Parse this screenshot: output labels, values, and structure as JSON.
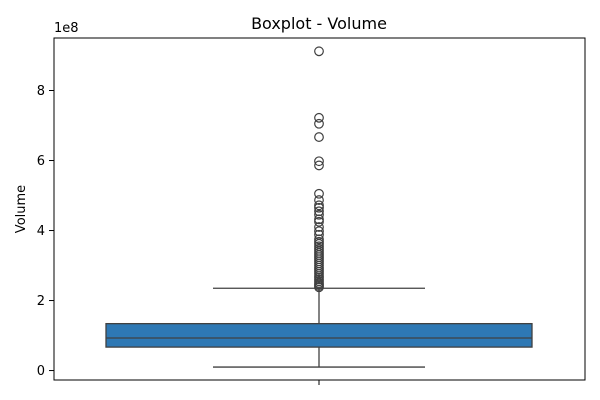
{
  "chart_data": {
    "type": "box",
    "title": "Boxplot - Volume",
    "xlabel": "",
    "ylabel": "Volume",
    "scale_label": "1e8",
    "ylim": [
      -27000000,
      950000000
    ],
    "yticks": [
      0,
      200000000,
      400000000,
      600000000,
      800000000
    ],
    "ytick_labels": [
      "0",
      "2",
      "4",
      "6",
      "8"
    ],
    "grid": false,
    "box": {
      "color": "#2e78b4",
      "edge_color": "#404040",
      "whisker_low": 10000000,
      "q1": 67000000,
      "median": 93000000,
      "q3": 134000000,
      "whisker_high": 235000000,
      "outliers": [
        912000000,
        722000000,
        705000000,
        667000000,
        598000000,
        586000000,
        505000000,
        487000000,
        472000000,
        465000000,
        455000000,
        445000000,
        432000000,
        425000000,
        410000000,
        398000000,
        388000000,
        375000000,
        368000000,
        362000000,
        355000000,
        348000000,
        342000000,
        336000000,
        330000000,
        324000000,
        318000000,
        312000000,
        306000000,
        300000000,
        294000000,
        288000000,
        282000000,
        276000000,
        270000000,
        265000000,
        260000000,
        255000000,
        250000000,
        246000000,
        242000000,
        238000000
      ]
    }
  }
}
